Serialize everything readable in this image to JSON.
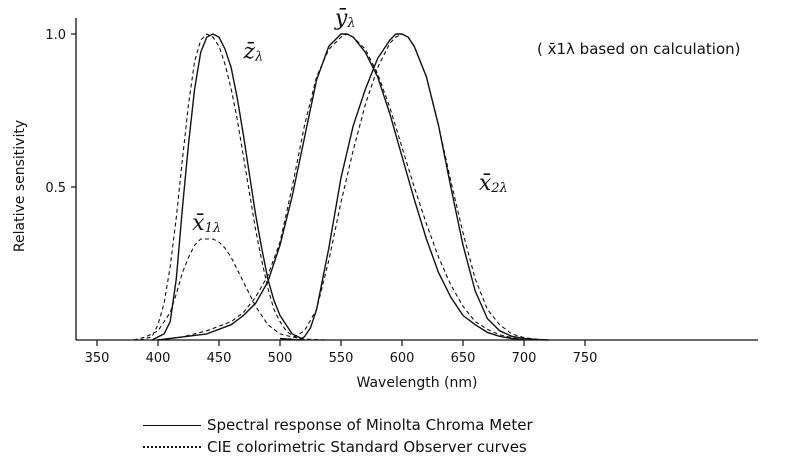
{
  "chart_data": {
    "type": "line",
    "title": "",
    "xlabel": "Wavelength (nm)",
    "ylabel": "Relative sensitivity",
    "xlim": [
      340,
      770
    ],
    "ylim": [
      0,
      1.0
    ],
    "x_ticks": [
      350,
      400,
      450,
      500,
      550,
      600,
      650,
      700,
      750
    ],
    "y_ticks": [
      {
        "value": 0.5,
        "label": "0.5"
      },
      {
        "value": 1.0,
        "label": "1.0"
      }
    ],
    "note": "( x̄1λ based on calculation)",
    "curve_labels": [
      {
        "series": "zbar",
        "base": "z̄",
        "sub": "λ",
        "x": 470,
        "y": 0.92
      },
      {
        "series": "ybar",
        "base": "ȳ",
        "sub": "λ",
        "x": 545,
        "y": 1.03
      },
      {
        "series": "x2bar",
        "base": "x̄",
        "sub": "2λ",
        "x": 663,
        "y": 0.49
      },
      {
        "series": "x1bar",
        "base": "x̄",
        "sub": "1λ",
        "x": 428,
        "y": 0.36
      }
    ],
    "legend": [
      {
        "style": "solid",
        "label": "Spectral response of Minolta Chroma Meter"
      },
      {
        "style": "dotted",
        "label": "CIE colorimetric Standard Observer curves"
      }
    ],
    "series": [
      {
        "id": "z-meter",
        "style": "solid",
        "x": [
          395,
          405,
          410,
          415,
          420,
          425,
          430,
          435,
          440,
          445,
          450,
          455,
          460,
          465,
          470,
          475,
          480,
          485,
          490,
          495,
          500,
          505,
          510,
          515,
          520
        ],
        "y": [
          0.0,
          0.02,
          0.06,
          0.2,
          0.43,
          0.64,
          0.82,
          0.94,
          0.99,
          1.0,
          0.99,
          0.95,
          0.89,
          0.79,
          0.67,
          0.54,
          0.41,
          0.3,
          0.2,
          0.13,
          0.08,
          0.05,
          0.02,
          0.01,
          0.0
        ]
      },
      {
        "id": "z-cie",
        "style": "dotted",
        "x": [
          385,
          395,
          400,
          405,
          410,
          415,
          420,
          425,
          430,
          435,
          440,
          445,
          450,
          455,
          460,
          465,
          470,
          475,
          480,
          485,
          490,
          495,
          500,
          505,
          510,
          515,
          520
        ],
        "y": [
          0.0,
          0.01,
          0.05,
          0.12,
          0.24,
          0.4,
          0.59,
          0.77,
          0.91,
          0.98,
          1.0,
          0.99,
          0.96,
          0.9,
          0.82,
          0.72,
          0.6,
          0.48,
          0.36,
          0.26,
          0.17,
          0.1,
          0.06,
          0.03,
          0.015,
          0.005,
          0.0
        ]
      },
      {
        "id": "x1-cie",
        "style": "dotted",
        "x": [
          380,
          390,
          400,
          410,
          415,
          420,
          425,
          430,
          435,
          440,
          445,
          450,
          455,
          460,
          465,
          470,
          475,
          480,
          485,
          490,
          495,
          500,
          510,
          520,
          530,
          540
        ],
        "y": [
          0.0,
          0.01,
          0.03,
          0.09,
          0.15,
          0.22,
          0.27,
          0.31,
          0.33,
          0.33,
          0.33,
          0.32,
          0.3,
          0.27,
          0.23,
          0.19,
          0.15,
          0.11,
          0.08,
          0.05,
          0.035,
          0.02,
          0.01,
          0.003,
          0.001,
          0.0
        ]
      },
      {
        "id": "y-meter",
        "style": "solid",
        "x": [
          400,
          420,
          440,
          460,
          470,
          480,
          490,
          500,
          510,
          520,
          530,
          540,
          550,
          555,
          560,
          570,
          580,
          590,
          600,
          610,
          620,
          630,
          640,
          650,
          660,
          670,
          680,
          690,
          700
        ],
        "y": [
          0.0,
          0.01,
          0.02,
          0.05,
          0.08,
          0.12,
          0.19,
          0.31,
          0.47,
          0.66,
          0.85,
          0.96,
          1.0,
          1.0,
          0.99,
          0.94,
          0.86,
          0.74,
          0.6,
          0.46,
          0.33,
          0.22,
          0.14,
          0.08,
          0.05,
          0.025,
          0.012,
          0.005,
          0.0
        ]
      },
      {
        "id": "y-cie",
        "style": "dotted",
        "x": [
          400,
          420,
          440,
          460,
          470,
          480,
          490,
          500,
          510,
          520,
          530,
          540,
          550,
          555,
          560,
          570,
          580,
          590,
          600,
          610,
          620,
          630,
          640,
          650,
          660,
          670,
          680,
          690,
          700
        ],
        "y": [
          0.0,
          0.01,
          0.03,
          0.06,
          0.09,
          0.14,
          0.21,
          0.32,
          0.5,
          0.7,
          0.86,
          0.95,
          0.99,
          1.0,
          0.99,
          0.95,
          0.87,
          0.76,
          0.63,
          0.5,
          0.38,
          0.27,
          0.18,
          0.11,
          0.06,
          0.035,
          0.017,
          0.008,
          0.0
        ]
      },
      {
        "id": "x2-meter",
        "style": "solid",
        "x": [
          500,
          510,
          515,
          520,
          525,
          530,
          540,
          550,
          560,
          570,
          580,
          590,
          595,
          600,
          605,
          610,
          620,
          630,
          640,
          650,
          660,
          670,
          680,
          690,
          700,
          710,
          720
        ],
        "y": [
          0.005,
          0.002,
          0.0,
          0.01,
          0.04,
          0.1,
          0.3,
          0.53,
          0.7,
          0.82,
          0.92,
          0.98,
          1.0,
          1.0,
          0.99,
          0.96,
          0.86,
          0.7,
          0.5,
          0.31,
          0.16,
          0.07,
          0.03,
          0.012,
          0.005,
          0.002,
          0.0
        ]
      },
      {
        "id": "x2-cie",
        "style": "dotted",
        "x": [
          500,
          510,
          520,
          530,
          540,
          550,
          560,
          570,
          580,
          590,
          595,
          600,
          605,
          610,
          620,
          630,
          640,
          650,
          660,
          670,
          680,
          690,
          700,
          710,
          720
        ],
        "y": [
          0.0,
          0.005,
          0.03,
          0.1,
          0.26,
          0.45,
          0.62,
          0.77,
          0.89,
          0.97,
          0.99,
          1.0,
          0.99,
          0.96,
          0.86,
          0.7,
          0.52,
          0.35,
          0.2,
          0.1,
          0.05,
          0.02,
          0.008,
          0.003,
          0.0
        ]
      }
    ]
  }
}
